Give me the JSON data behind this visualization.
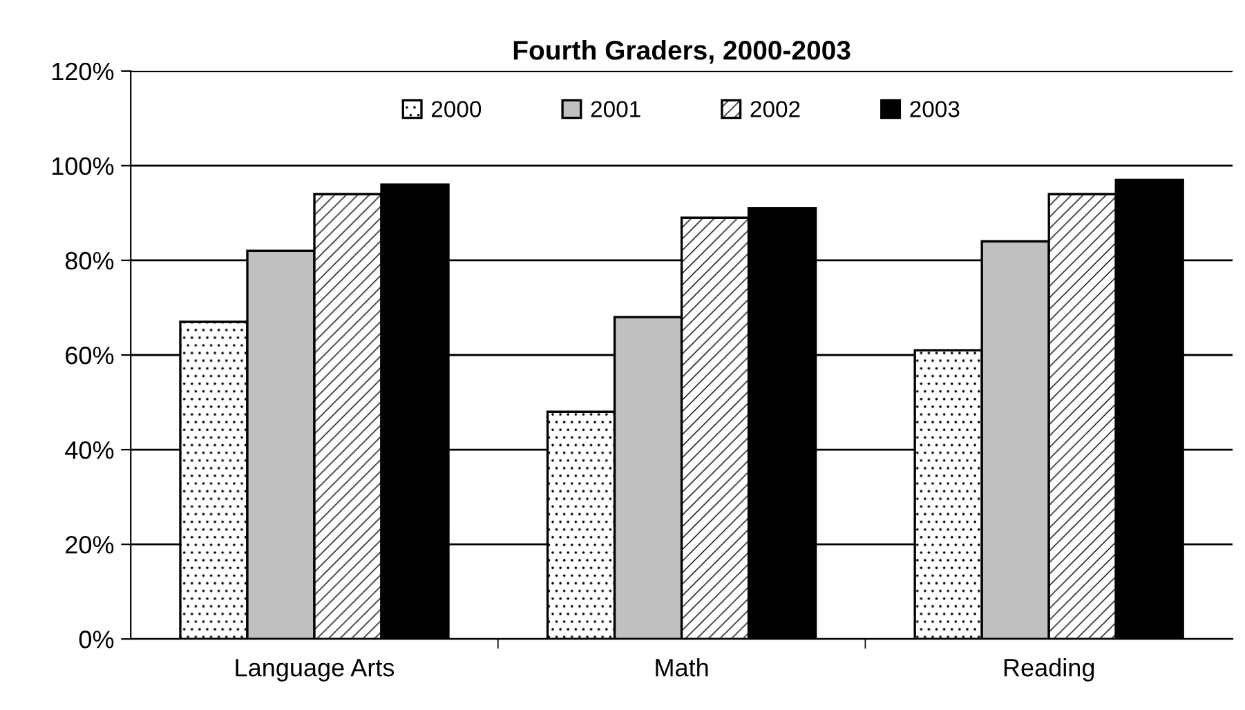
{
  "chart_data": {
    "type": "bar",
    "title": "Fourth Graders, 2000-2003",
    "categories": [
      "Language Arts",
      "Math",
      "Reading"
    ],
    "series": [
      {
        "name": "2000",
        "color": "#000000",
        "values": [
          67,
          48,
          61
        ]
      },
      {
        "name": "2001",
        "color": "#c0c0c0",
        "values": [
          82,
          68,
          84
        ]
      },
      {
        "name": "2002",
        "color": "#000000",
        "values": [
          94,
          89,
          94
        ]
      },
      {
        "name": "2003",
        "color": "#000000",
        "values": [
          96,
          91,
          97
        ]
      }
    ],
    "ylim": [
      0,
      120
    ],
    "yticks": [
      {
        "value": 0,
        "label": "0%"
      },
      {
        "value": 20,
        "label": "20%"
      },
      {
        "value": 40,
        "label": "40%"
      },
      {
        "value": 60,
        "label": "60%"
      },
      {
        "value": 80,
        "label": "80%"
      },
      {
        "value": 100,
        "label": "100%"
      },
      {
        "value": 120,
        "label": "120%"
      }
    ],
    "grid": "y",
    "legend": "top"
  }
}
